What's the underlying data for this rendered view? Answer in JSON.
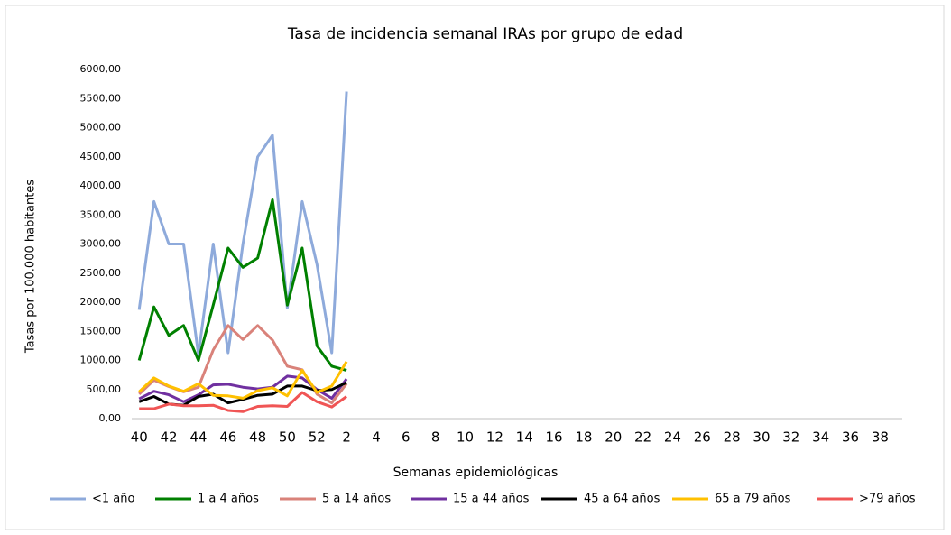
{
  "chart_data": {
    "type": "line",
    "title": "Tasa de incidencia semanal IRAs por grupo de edad",
    "xlabel": "Semanas epidemiológicas",
    "ylabel": "Tasas por 100.000 habitantes",
    "categories": [
      "40",
      null,
      "42",
      null,
      "44",
      null,
      "46",
      null,
      "48",
      null,
      "50",
      null,
      "52",
      null,
      "2",
      null,
      "4",
      null,
      "6",
      null,
      "8",
      null,
      "10",
      null,
      "12",
      null,
      "14",
      null,
      "16",
      null,
      "18",
      null,
      "20",
      null,
      "22",
      null,
      "24",
      null,
      "26",
      null,
      "28",
      null,
      "30",
      null,
      "32",
      null,
      "34",
      null,
      "36",
      null,
      "38",
      null
    ],
    "ylim": [
      0,
      6000
    ],
    "yticks": [
      {
        "value": 0,
        "label": "0,00"
      },
      {
        "value": 500,
        "label": "500,00"
      },
      {
        "value": 1000,
        "label": "1000,00"
      },
      {
        "value": 1500,
        "label": "1500,00"
      },
      {
        "value": 2000,
        "label": "2000,00"
      },
      {
        "value": 2500,
        "label": "2500,00"
      },
      {
        "value": 3000,
        "label": "3000,00"
      },
      {
        "value": 3500,
        "label": "3500,00"
      },
      {
        "value": 4000,
        "label": "4000,00"
      },
      {
        "value": 4500,
        "label": "4500,00"
      },
      {
        "value": 5000,
        "label": "5000,00"
      },
      {
        "value": 5500,
        "label": "5500,00"
      },
      {
        "value": 6000,
        "label": "6000,00"
      }
    ],
    "grid": false,
    "legend": "bottom",
    "series": [
      {
        "name": "<1 año",
        "color": "#8eaadb",
        "values": [
          1870,
          3730,
          3000,
          3000,
          1100,
          3000,
          1130,
          3000,
          4500,
          4870,
          1900,
          3730,
          2650,
          1130,
          5620,
          null,
          null,
          null,
          null,
          null,
          null,
          null,
          null,
          null,
          null,
          null,
          null,
          null,
          null,
          null,
          null,
          null,
          null,
          null,
          null,
          null,
          null,
          null,
          null,
          null,
          null,
          null,
          null,
          null,
          null,
          null,
          null,
          null,
          null,
          null,
          null,
          null
        ]
      },
      {
        "name": "1 a 4 años",
        "color": "#008000",
        "values": [
          1000,
          1920,
          1430,
          1600,
          1000,
          1950,
          2930,
          2600,
          2760,
          3760,
          1950,
          2930,
          1250,
          900,
          830,
          null,
          null,
          null,
          null,
          null,
          null,
          null,
          null,
          null,
          null,
          null,
          null,
          null,
          null,
          null,
          null,
          null,
          null,
          null,
          null,
          null,
          null,
          null,
          null,
          null,
          null,
          null,
          null,
          null,
          null,
          null,
          null,
          null,
          null,
          null,
          null,
          null
        ]
      },
      {
        "name": "5 a 14 años",
        "color": "#d9827a",
        "values": [
          420,
          660,
          550,
          460,
          540,
          1180,
          1600,
          1360,
          1600,
          1350,
          900,
          840,
          420,
          270,
          600,
          null,
          null,
          null,
          null,
          null,
          null,
          null,
          null,
          null,
          null,
          null,
          null,
          null,
          null,
          null,
          null,
          null,
          null,
          null,
          null,
          null,
          null,
          null,
          null,
          null,
          null,
          null,
          null,
          null,
          null,
          null,
          null,
          null,
          null,
          null,
          null,
          null
        ]
      },
      {
        "name": "15 a 44 años",
        "color": "#7030a0",
        "values": [
          340,
          470,
          410,
          290,
          410,
          580,
          590,
          540,
          510,
          540,
          730,
          700,
          500,
          350,
          680,
          null,
          null,
          null,
          null,
          null,
          null,
          null,
          null,
          null,
          null,
          null,
          null,
          null,
          null,
          null,
          null,
          null,
          null,
          null,
          null,
          null,
          null,
          null,
          null,
          null,
          null,
          null,
          null,
          null,
          null,
          null,
          null,
          null,
          null,
          null,
          null,
          null
        ]
      },
      {
        "name": "45 a 64 años",
        "color": "#000000",
        "values": [
          290,
          380,
          250,
          230,
          380,
          420,
          270,
          330,
          400,
          420,
          560,
          560,
          480,
          500,
          620,
          null,
          null,
          null,
          null,
          null,
          null,
          null,
          null,
          null,
          null,
          null,
          null,
          null,
          null,
          null,
          null,
          null,
          null,
          null,
          null,
          null,
          null,
          null,
          null,
          null,
          null,
          null,
          null,
          null,
          null,
          null,
          null,
          null,
          null,
          null,
          null,
          null
        ]
      },
      {
        "name": "65 a 79 años",
        "color": "#ffc000",
        "values": [
          460,
          700,
          560,
          470,
          600,
          400,
          390,
          350,
          480,
          530,
          390,
          830,
          450,
          560,
          980,
          null,
          null,
          null,
          null,
          null,
          null,
          null,
          null,
          null,
          null,
          null,
          null,
          null,
          null,
          null,
          null,
          null,
          null,
          null,
          null,
          null,
          null,
          null,
          null,
          null,
          null,
          null,
          null,
          null,
          null,
          null,
          null,
          null,
          null,
          null,
          null,
          null
        ]
      },
      {
        "name": ">79 años",
        "color": "#f05555",
        "values": [
          170,
          170,
          250,
          220,
          220,
          230,
          140,
          120,
          210,
          220,
          210,
          450,
          290,
          200,
          380,
          null,
          null,
          null,
          null,
          null,
          null,
          null,
          null,
          null,
          null,
          null,
          null,
          null,
          null,
          null,
          null,
          null,
          null,
          null,
          null,
          null,
          null,
          null,
          null,
          null,
          null,
          null,
          null,
          null,
          null,
          null,
          null,
          null,
          null,
          null,
          null,
          null
        ]
      }
    ]
  }
}
